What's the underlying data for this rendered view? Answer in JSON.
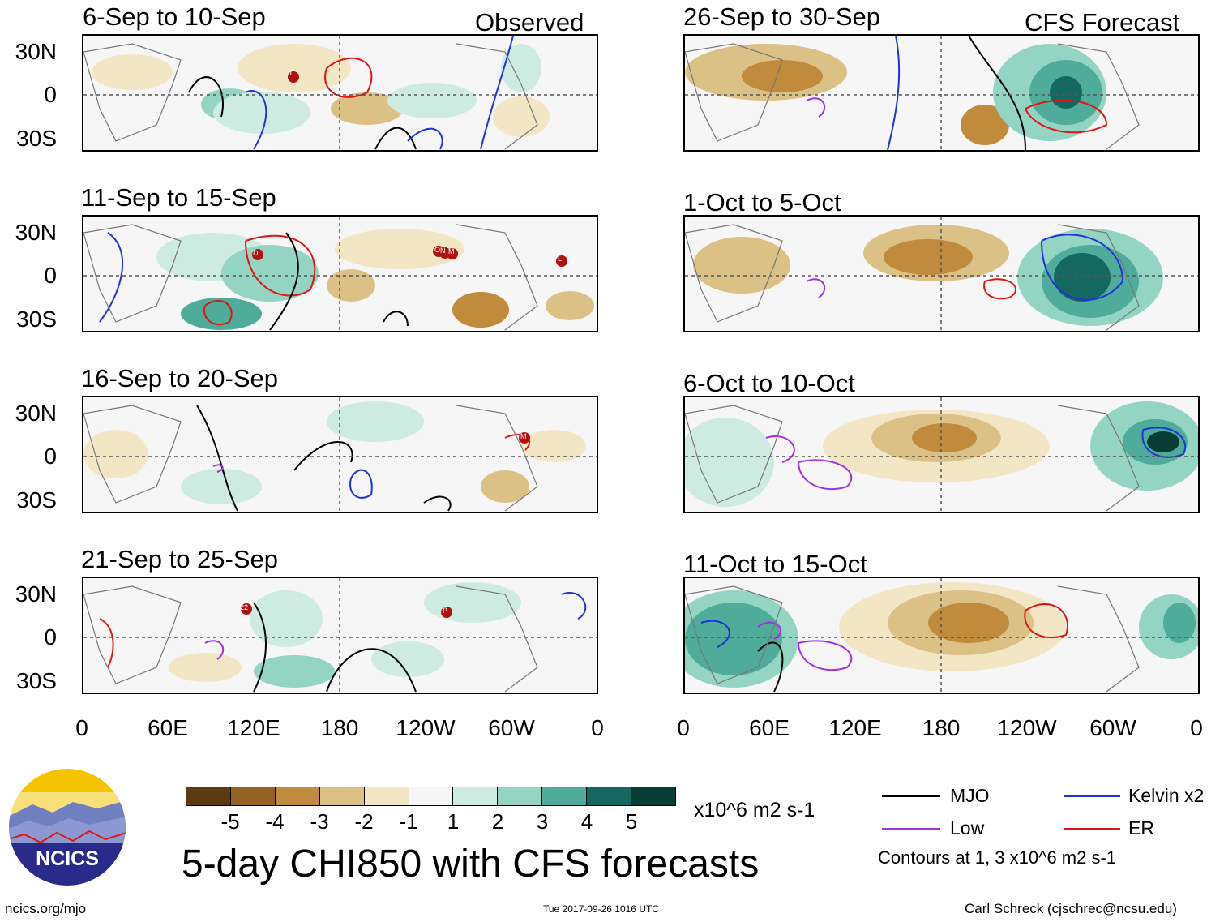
{
  "panels": [
    {
      "title": "6-Sep to 10-Sep",
      "corner": "Observed"
    },
    {
      "title": "11-Sep to 15-Sep",
      "corner": ""
    },
    {
      "title": "16-Sep to 20-Sep",
      "corner": ""
    },
    {
      "title": "21-Sep to 25-Sep",
      "corner": ""
    },
    {
      "title": "26-Sep to 30-Sep",
      "corner": "CFS Forecast"
    },
    {
      "title": "1-Oct to 5-Oct",
      "corner": ""
    },
    {
      "title": "6-Oct to 10-Oct",
      "corner": ""
    },
    {
      "title": "11-Oct to 15-Oct",
      "corner": ""
    }
  ],
  "lat_labels": [
    "30N",
    "0",
    "30S"
  ],
  "lon_labels": [
    "0",
    "60E",
    "120E",
    "180",
    "120W",
    "60W",
    "0"
  ],
  "storm_labels": [
    "T",
    "D",
    "O",
    "N",
    "M",
    "L",
    "M",
    "22",
    "P"
  ],
  "colorbar": {
    "colors": [
      "#5a3a0e",
      "#946222",
      "#c08b3c",
      "#dcc187",
      "#f3e6c4",
      "#f6f6f6",
      "#cdebe1",
      "#94d4c3",
      "#4fab9a",
      "#15685f",
      "#083d36"
    ],
    "tick_labels": [
      "-5",
      "-4",
      "-3",
      "-2",
      "-1",
      "1",
      "2",
      "3",
      "4",
      "5"
    ],
    "units": "x10^6 m2 s-1"
  },
  "legend": {
    "items": [
      {
        "label": "MJO",
        "color": "#000000"
      },
      {
        "label": "Kelvin x2",
        "color": "#1f33d6"
      },
      {
        "label": "Low",
        "color": "#a033e0"
      },
      {
        "label": "ER",
        "color": "#e01515"
      }
    ],
    "note": "Contours at 1, 3 x10^6 m2 s-1"
  },
  "logo_text": "NCICS",
  "main_title": "5-day CHI850 with CFS forecasts",
  "footer": {
    "left": "ncics.org/mjo",
    "center": "Tue 2017-09-26 1016 UTC",
    "right": "Carl Schreck (cjschrec@ncsu.edu)"
  }
}
